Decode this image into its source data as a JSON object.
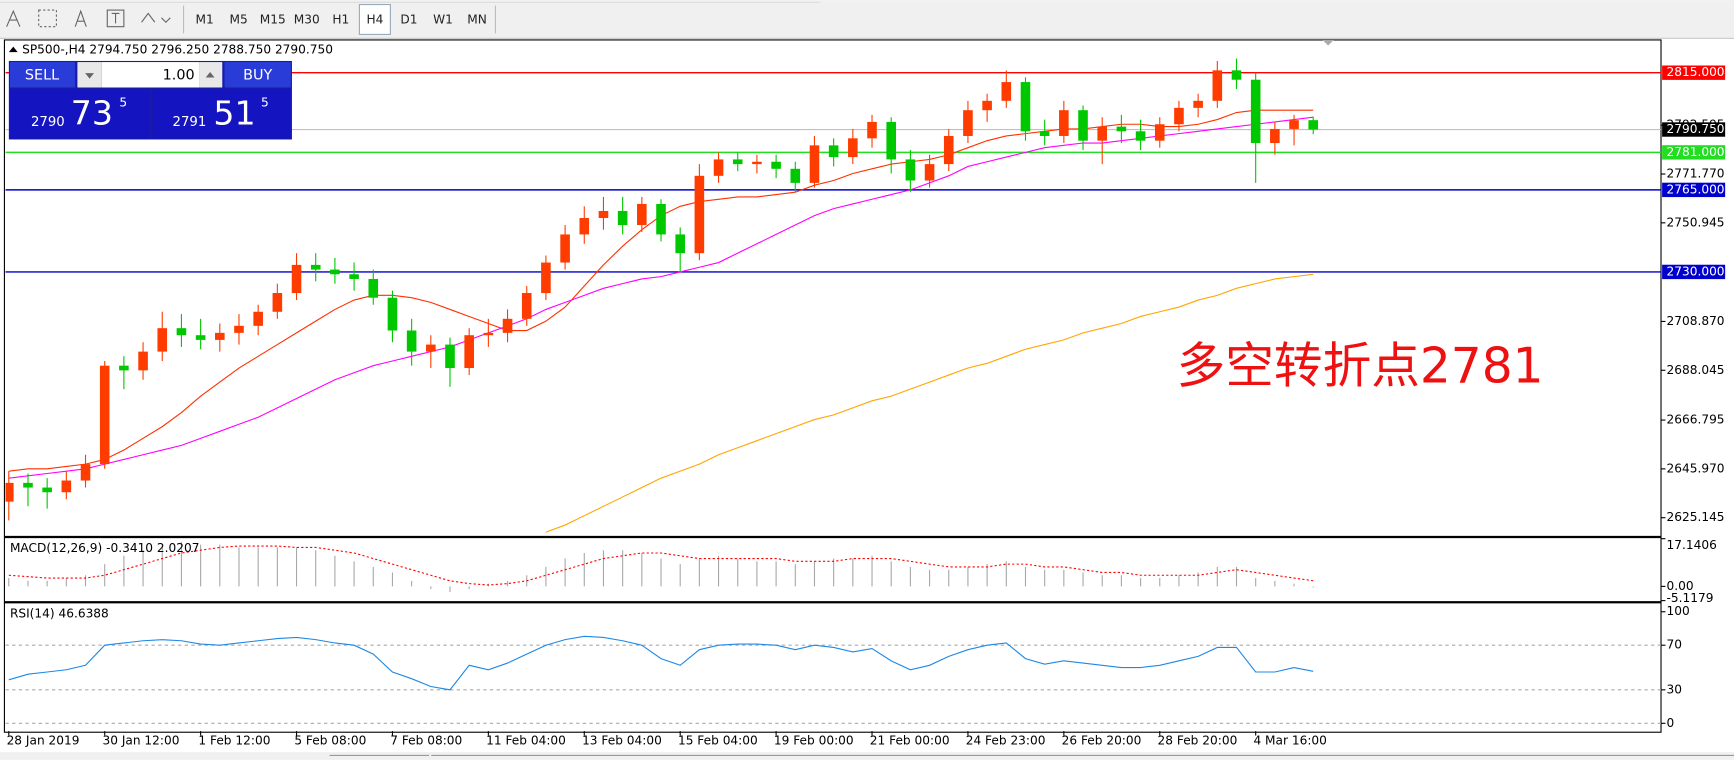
{
  "toolbar": {
    "timeframes": [
      "M1",
      "M5",
      "M15",
      "M30",
      "H1",
      "H4",
      "D1",
      "W1",
      "MN"
    ],
    "active_index": 5
  },
  "trade_panel": {
    "sell": "SELL",
    "buy": "BUY",
    "volume": "1.00",
    "sell_quote": [
      "2790",
      "73",
      "5"
    ],
    "buy_quote": [
      "2791",
      "51",
      "5"
    ]
  },
  "chart_data": [
    {
      "type": "candlestick",
      "title": "SP500-,H4  2794.750 2796.250 2788.750 2790.750",
      "up_color": "#ff3c00",
      "down_color": "#00c800",
      "xlim": [
        -0.17,
        86.13
      ],
      "ylim": [
        2617.6,
        2828.5
      ],
      "yticks": [
        2625.145,
        {
          "value": 2645.97,
          "label": "2645.970"
        },
        2666.795,
        2688.045,
        {
          "value": 2708.87,
          "label": "2708.870"
        },
        2750.945,
        {
          "value": 2771.77,
          "label": "2771.770"
        },
        2792.595
      ],
      "candles": [
        [
          2632,
          2645,
          2624,
          2640
        ],
        [
          2640,
          2644,
          2630,
          2638
        ],
        [
          2638,
          2642,
          2629,
          2636
        ],
        [
          2636,
          2645,
          2633,
          2641
        ],
        [
          2641,
          2652,
          2638,
          2648
        ],
        [
          2648,
          2692,
          2646,
          2690
        ],
        [
          2690,
          2694,
          2680,
          2688
        ],
        [
          2688,
          2700,
          2684,
          2696
        ],
        [
          2696,
          2713,
          2692,
          2706
        ],
        [
          2706,
          2712,
          2698,
          2703
        ],
        [
          2703,
          2710,
          2697,
          2701
        ],
        [
          2701,
          2708,
          2696,
          2704
        ],
        [
          2704,
          2712,
          2699,
          2707
        ],
        [
          2707,
          2716,
          2703,
          2713
        ],
        [
          2713,
          2725,
          2710,
          2721
        ],
        [
          2721,
          2738,
          2718,
          2733
        ],
        [
          2733,
          2738,
          2726,
          2731
        ],
        [
          2731,
          2736,
          2725,
          2729
        ],
        [
          2729,
          2734,
          2722,
          2727
        ],
        [
          2727,
          2731,
          2716,
          2719
        ],
        [
          2719,
          2722,
          2700,
          2705
        ],
        [
          2705,
          2710,
          2690,
          2696
        ],
        [
          2696,
          2703,
          2689,
          2699
        ],
        [
          2699,
          2702,
          2681,
          2689
        ],
        [
          2689,
          2706,
          2686,
          2703
        ],
        [
          2703,
          2710,
          2698,
          2704
        ],
        [
          2704,
          2714,
          2700,
          2710
        ],
        [
          2710,
          2724,
          2707,
          2721
        ],
        [
          2721,
          2737,
          2718,
          2734
        ],
        [
          2734,
          2750,
          2731,
          2746
        ],
        [
          2746,
          2758,
          2742,
          2753
        ],
        [
          2753,
          2762,
          2748,
          2756
        ],
        [
          2756,
          2762,
          2746,
          2750
        ],
        [
          2750,
          2762,
          2747,
          2759
        ],
        [
          2759,
          2761,
          2743,
          2746
        ],
        [
          2746,
          2749,
          2730,
          2738
        ],
        [
          2738,
          2776,
          2735,
          2771
        ],
        [
          2771,
          2781,
          2768,
          2778
        ],
        [
          2778,
          2781,
          2773,
          2776
        ],
        [
          2776,
          2780,
          2772,
          2777
        ],
        [
          2777,
          2780,
          2770,
          2774
        ],
        [
          2774,
          2777,
          2764,
          2768
        ],
        [
          2768,
          2788,
          2766,
          2784
        ],
        [
          2784,
          2787,
          2775,
          2779
        ],
        [
          2779,
          2791,
          2776,
          2787
        ],
        [
          2787,
          2797,
          2783,
          2794
        ],
        [
          2794,
          2796,
          2772,
          2778
        ],
        [
          2778,
          2782,
          2764,
          2769
        ],
        [
          2769,
          2780,
          2766,
          2776
        ],
        [
          2776,
          2791,
          2773,
          2788
        ],
        [
          2788,
          2803,
          2785,
          2799
        ],
        [
          2799,
          2806,
          2794,
          2803
        ],
        [
          2803,
          2816,
          2800,
          2811
        ],
        [
          2811,
          2813,
          2786,
          2790
        ],
        [
          2790,
          2795,
          2784,
          2788
        ],
        [
          2788,
          2803,
          2785,
          2799
        ],
        [
          2799,
          2801,
          2782,
          2786
        ],
        [
          2786,
          2796,
          2776,
          2792
        ],
        [
          2792,
          2797,
          2785,
          2790
        ],
        [
          2790,
          2795,
          2782,
          2786
        ],
        [
          2786,
          2796,
          2783,
          2793
        ],
        [
          2793,
          2803,
          2790,
          2800
        ],
        [
          2800,
          2806,
          2796,
          2803
        ],
        [
          2803,
          2820,
          2800,
          2816
        ],
        [
          2816,
          2821,
          2808,
          2812
        ],
        [
          2812,
          2815,
          2768,
          2785
        ],
        [
          2785,
          2794,
          2780,
          2791
        ],
        [
          2791,
          2797,
          2784,
          2794.75
        ],
        [
          2794.75,
          2796.25,
          2788.75,
          2790.75
        ]
      ],
      "series": [
        {
          "color": "#ff3000",
          "values": [
            2645,
            2646,
            2646,
            2647,
            2648,
            2650,
            2654,
            2659,
            2664,
            2670,
            2677,
            2683,
            2689,
            2694,
            2699,
            2704,
            2709,
            2714,
            2718,
            2720,
            2720,
            2719,
            2717,
            2714,
            2711,
            2708,
            2705,
            2705,
            2709,
            2715,
            2724,
            2733,
            2741,
            2748,
            2754,
            2758,
            2760,
            2761,
            2762,
            2762,
            2763,
            2764,
            2767,
            2769,
            2772,
            2774,
            2776,
            2777,
            2778,
            2780,
            2783,
            2786,
            2788,
            2789,
            2790,
            2791,
            2791,
            2792,
            2793,
            2793,
            2792,
            2792,
            2793,
            2795,
            2798,
            2799,
            2799,
            2799,
            2799
          ]
        },
        {
          "color": "#ff00ff",
          "values": [
            2642,
            2643,
            2644,
            2645,
            2646,
            2648,
            2650,
            2652,
            2654,
            2656,
            2659,
            2662,
            2665,
            2668,
            2672,
            2676,
            2680,
            2684,
            2687,
            2690,
            2692,
            2694,
            2696,
            2698,
            2701,
            2704,
            2707,
            2710,
            2714,
            2717,
            2720,
            2723,
            2725,
            2727,
            2728,
            2730,
            2732,
            2734,
            2738,
            2742,
            2746,
            2750,
            2754,
            2757,
            2759,
            2761,
            2763,
            2765,
            2768,
            2771,
            2775,
            2777,
            2779,
            2781,
            2783,
            2784,
            2785,
            2785,
            2786,
            2787,
            2788,
            2789,
            2790,
            2791,
            2792,
            2793,
            2794,
            2795,
            2796
          ]
        },
        {
          "color": "#ffa500",
          "values": [
            null,
            null,
            null,
            null,
            null,
            null,
            null,
            null,
            null,
            null,
            null,
            null,
            null,
            null,
            null,
            null,
            null,
            null,
            null,
            null,
            null,
            null,
            null,
            null,
            null,
            null,
            null,
            null,
            2619,
            2622,
            2626,
            2630,
            2634,
            2638,
            2642,
            2645,
            2648,
            2652,
            2655,
            2658,
            2661,
            2664,
            2667,
            2669,
            2672,
            2675,
            2677,
            2680,
            2683,
            2686,
            2689,
            2691,
            2694,
            2697,
            2699,
            2701,
            2704,
            2706,
            2708,
            2711,
            2713,
            2715,
            2718,
            2720,
            2723,
            2725,
            2727,
            2728,
            2729
          ]
        }
      ],
      "hlines": [
        {
          "value": 2815,
          "label": "2815.000",
          "color": "#ff0000"
        },
        {
          "value": 2781,
          "label": "2781.000",
          "color": "#22dd22"
        },
        {
          "value": 2765,
          "label": "2765.000",
          "color": "#0000cc"
        },
        {
          "value": 2730,
          "label": "2730.000",
          "color": "#0000cc"
        }
      ],
      "last": {
        "value": 2790.75,
        "label": "2790.750",
        "color": "#000000"
      },
      "annotation": "多空转折点2781"
    },
    {
      "type": "macd",
      "title": "MACD(12,26,9) -0.3410 2.0207",
      "xlim": [
        -0.17,
        86.13
      ],
      "ylim": [
        -5.1179,
        17.1406
      ],
      "yticks": [
        17.1406,
        {
          "value": 0,
          "label": "0.00"
        },
        -5.1179
      ],
      "series": [
        {
          "style": "histogram",
          "color": "#a8a8a8",
          "values": [
            3,
            2,
            2,
            3,
            4,
            8,
            11,
            13,
            15,
            16,
            15,
            15,
            14,
            14,
            14,
            14,
            13,
            11,
            9,
            7,
            5,
            2,
            -1,
            -2,
            -1,
            1,
            2,
            4,
            7,
            10,
            12,
            13,
            13,
            12,
            10,
            8,
            10,
            11,
            10,
            9,
            9,
            8,
            9,
            10,
            10,
            11,
            9,
            7,
            6,
            6,
            7,
            8,
            9,
            7,
            6,
            6,
            5,
            4,
            4,
            3,
            3,
            4,
            5,
            7,
            7,
            3,
            2,
            1,
            -0.341
          ]
        },
        {
          "style": "dotted",
          "color": "#ff0000",
          "values": [
            4,
            3.5,
            3,
            3,
            3,
            4,
            6,
            8,
            10,
            12,
            13,
            14,
            14.5,
            14.5,
            14.5,
            14,
            14,
            13,
            12,
            10,
            8,
            6,
            4,
            2,
            1,
            0.5,
            1,
            2,
            4,
            6,
            8,
            10,
            11,
            12,
            12,
            11,
            10,
            10,
            10,
            10,
            10,
            9,
            9,
            9,
            10,
            10,
            10,
            9,
            8,
            7,
            7,
            7,
            8,
            8,
            7,
            7,
            6,
            5,
            5,
            4,
            4,
            4,
            4,
            5,
            6,
            5,
            4,
            3,
            2.0207
          ]
        }
      ]
    },
    {
      "type": "line",
      "title": "RSI(14) 46.6388",
      "xlim": [
        -0.17,
        86.13
      ],
      "ylim": [
        -7,
        107
      ],
      "yticks": [
        100,
        70,
        30,
        0
      ],
      "series": [
        {
          "color": "#1e88e5",
          "values": [
            39,
            44,
            46,
            48,
            52,
            70,
            72,
            74,
            75,
            74,
            71,
            70,
            72,
            74,
            76,
            77,
            75,
            72,
            70,
            62,
            46,
            40,
            33,
            30,
            52,
            48,
            54,
            62,
            70,
            75,
            78,
            77,
            74,
            70,
            58,
            52,
            66,
            70,
            71,
            71,
            70,
            66,
            70,
            68,
            64,
            67,
            56,
            48,
            52,
            60,
            66,
            70,
            72,
            58,
            53,
            56,
            54,
            52,
            50,
            50,
            52,
            56,
            60,
            68,
            68,
            46,
            46,
            50,
            46.6388
          ]
        }
      ],
      "xticks": [
        {
          "value": 0,
          "label": "28 Jan 2019"
        },
        {
          "value": 5,
          "label": "30 Jan 12:00"
        },
        {
          "value": 10,
          "label": "1 Feb 12:00"
        },
        {
          "value": 15,
          "label": "5 Feb 08:00"
        },
        {
          "value": 20,
          "label": "7 Feb 08:00"
        },
        {
          "value": 25,
          "label": "11 Feb 04:00"
        },
        {
          "value": 30,
          "label": "13 Feb 04:00"
        },
        {
          "value": 35,
          "label": "15 Feb 04:00"
        },
        {
          "value": 40,
          "label": "19 Feb 00:00"
        },
        {
          "value": 45,
          "label": "21 Feb 00:00"
        },
        {
          "value": 50,
          "label": "24 Feb 23:00"
        },
        {
          "value": 55,
          "label": "26 Feb 20:00"
        },
        {
          "value": 60,
          "label": "28 Feb 20:00"
        },
        {
          "value": 65,
          "label": "4 Mar 16:00"
        }
      ]
    }
  ]
}
